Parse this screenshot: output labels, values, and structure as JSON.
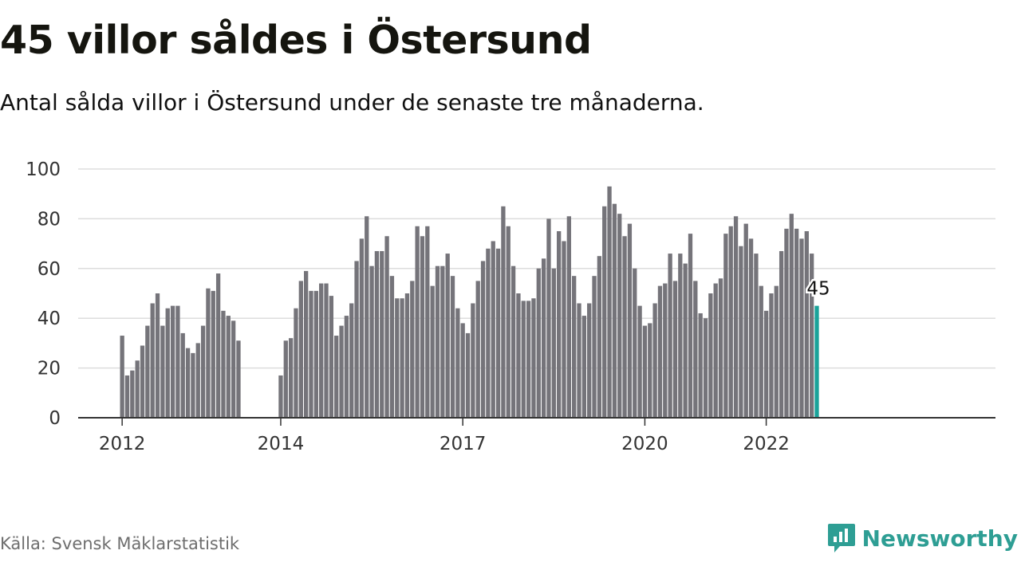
{
  "header": {
    "title": "45 villor såldes i Östersund",
    "subtitle": "Antal sålda villor i Östersund under de senaste tre månaderna."
  },
  "footer": {
    "source": "Källa: Svensk Mäklarstatistik",
    "brand": "Newsworthy",
    "brand_icon": "newsworthy-logo-icon"
  },
  "colors": {
    "bar": "#75747a",
    "highlight": "#1aa39a",
    "grid": "#dddddd",
    "brand": "#2e9e94"
  },
  "chart_data": {
    "type": "bar",
    "title": "45 villor såldes i Östersund",
    "xlabel": "",
    "ylabel": "",
    "ylim": [
      0,
      100
    ],
    "yticks": [
      0,
      20,
      40,
      60,
      80,
      100
    ],
    "xticks": [
      "2012",
      "2014",
      "2017",
      "2020",
      "2022"
    ],
    "grid": true,
    "highlight_label": "45",
    "groups": [
      {
        "values": [
          33,
          17,
          19,
          23,
          29,
          37,
          46,
          50,
          37,
          44,
          45,
          45,
          34,
          28,
          26,
          30,
          37,
          52,
          51,
          58,
          43,
          41,
          39,
          31
        ]
      },
      {
        "values": [
          17,
          31,
          32,
          44,
          55,
          59,
          51,
          51,
          54,
          54,
          49,
          33,
          37,
          41,
          46,
          63,
          72,
          81,
          61,
          67,
          67,
          73,
          57,
          48,
          48,
          50,
          55,
          77,
          73,
          77,
          53,
          61,
          61,
          66,
          57,
          44,
          38,
          34,
          46,
          55,
          63,
          68,
          71,
          68,
          85,
          77,
          61,
          50,
          47,
          47,
          48,
          60,
          64,
          80,
          60,
          75,
          71,
          81,
          57,
          46,
          41,
          46,
          57,
          65,
          85,
          93,
          86,
          82,
          73,
          78,
          60,
          45,
          37,
          38,
          46,
          53,
          54,
          66,
          55,
          66,
          62,
          74,
          55,
          42,
          40,
          50,
          54,
          56,
          74,
          77,
          81,
          69,
          78,
          72,
          66,
          53,
          43,
          50,
          53,
          67,
          76,
          82,
          76,
          72,
          75,
          66,
          45
        ]
      }
    ]
  }
}
